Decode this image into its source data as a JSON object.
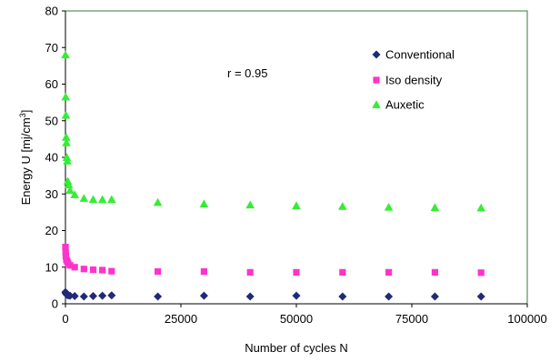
{
  "chart_data": {
    "type": "scatter",
    "title": "",
    "xlabel": "Number of cycles N",
    "ylabel": "Energy U [mj/cm",
    "ylabel_sup": "3",
    "ylabel_end": "]",
    "xlim": [
      0,
      100000
    ],
    "ylim": [
      0,
      80
    ],
    "xticks": [
      0,
      25000,
      50000,
      75000,
      100000
    ],
    "yticks": [
      0,
      10,
      20,
      30,
      40,
      50,
      60,
      70,
      80
    ],
    "grid": false,
    "legend_position": "top-right",
    "annotation": "r = 0.95",
    "frame_color": "#3a7a3a",
    "series": [
      {
        "name": "Conventional",
        "marker": "diamond",
        "color": "#1f2a78",
        "x": [
          0,
          50,
          100,
          200,
          400,
          600,
          1000,
          2000,
          4000,
          6000,
          8000,
          10000,
          20000,
          30000,
          40000,
          50000,
          60000,
          70000,
          80000,
          90000
        ],
        "y": [
          3.2,
          3.0,
          2.8,
          2.6,
          2.4,
          2.3,
          2.2,
          2.1,
          2.0,
          2.1,
          2.2,
          2.3,
          2.0,
          2.2,
          2.0,
          2.2,
          2.0,
          2.0,
          2.0,
          2.0
        ]
      },
      {
        "name": "Iso density",
        "marker": "square",
        "color": "#ff33cc",
        "x": [
          0,
          50,
          100,
          200,
          400,
          600,
          1000,
          2000,
          4000,
          6000,
          8000,
          10000,
          20000,
          30000,
          40000,
          50000,
          60000,
          70000,
          80000,
          90000
        ],
        "y": [
          15.5,
          14.0,
          13.0,
          12.0,
          11.5,
          11.0,
          10.5,
          10.0,
          9.5,
          9.3,
          9.2,
          8.9,
          8.8,
          8.8,
          8.6,
          8.6,
          8.6,
          8.6,
          8.6,
          8.5
        ]
      },
      {
        "name": "Auxetic",
        "marker": "triangle",
        "color": "#33ee33",
        "x": [
          0,
          50,
          100,
          150,
          200,
          300,
          400,
          500,
          700,
          1000,
          2000,
          4000,
          6000,
          8000,
          10000,
          20000,
          30000,
          40000,
          50000,
          60000,
          70000,
          80000,
          90000
        ],
        "y": [
          68.0,
          56.5,
          51.5,
          45.5,
          44.0,
          40.0,
          39.0,
          33.5,
          32.5,
          31.0,
          29.8,
          28.8,
          28.5,
          28.5,
          28.5,
          27.7,
          27.3,
          27.0,
          26.8,
          26.6,
          26.4,
          26.3,
          26.2
        ]
      }
    ]
  }
}
